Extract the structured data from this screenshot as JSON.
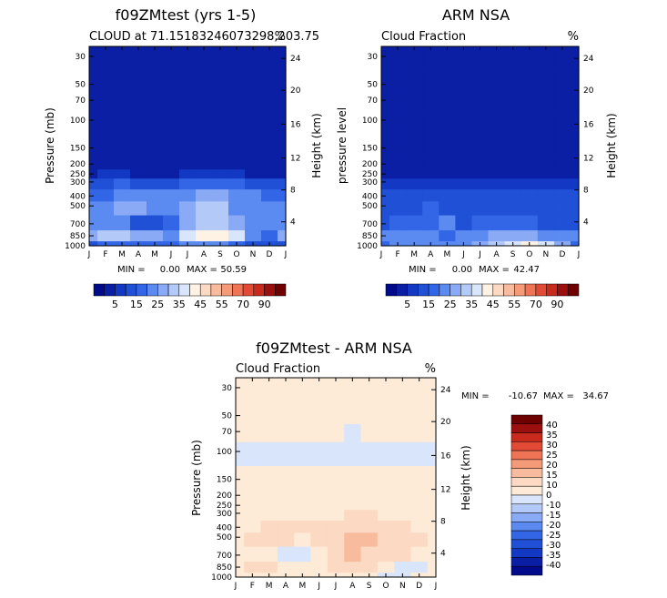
{
  "colors": {
    "scale": [
      "#000a8b",
      "#0a1fa4",
      "#1338c4",
      "#1f50d6",
      "#3366e6",
      "#5b8af0",
      "#8aaaf5",
      "#b3c9f7",
      "#d9e5fa",
      "#fdf2e4",
      "#fbd9c2",
      "#f9bb9e",
      "#f59a79",
      "#ef7355",
      "#e24a35",
      "#c92a1e",
      "#9c0f0f",
      "#6e0000"
    ],
    "diff": [
      "#000a8b",
      "#0a1fa4",
      "#1338c4",
      "#1f50d6",
      "#3366e6",
      "#5b8af0",
      "#8aaaf5",
      "#b3c9f7",
      "#d9e5fa",
      "#fdebd8",
      "#fbd9c2",
      "#f9bb9e",
      "#f59a79",
      "#ef7355",
      "#e24a35",
      "#c92a1e",
      "#9c0f0f",
      "#6e0000"
    ]
  },
  "month_ticks": [
    "J",
    "F",
    "M",
    "A",
    "M",
    "J",
    "J",
    "A",
    "S",
    "O",
    "N",
    "D",
    "J"
  ],
  "pressure_ticks": [
    "30",
    "50",
    "70",
    "100",
    "150",
    "200",
    "250",
    "300",
    "400",
    "500",
    "700",
    "850",
    "1000"
  ],
  "height_ticks": [
    "24",
    "20",
    "16",
    "12",
    "8",
    "4"
  ],
  "colorbar_labels": [
    "5",
    "15",
    "25",
    "35",
    "45",
    "55",
    "70",
    "90"
  ],
  "diff_colorbar_labels": [
    "40",
    "35",
    "30",
    "25",
    "20",
    "15",
    "10",
    "0",
    "-10",
    "-15",
    "-20",
    "-25",
    "-30",
    "-35",
    "-40"
  ],
  "panels": {
    "model": {
      "title": "f09ZMtest (yrs 1-5)",
      "subtitle": "CLOUD at 71.15183246073298,203.75",
      "unit": "%",
      "ylabel": "Pressure (mb)",
      "y2label": "Height (km)",
      "min_text": "MIN =",
      "min_value": "0.00",
      "max_text": "MAX =",
      "max_value": "50.59"
    },
    "obs": {
      "title": "ARM NSA",
      "subtitle": "Cloud Fraction",
      "unit": "%",
      "ylabel": "pressure level",
      "y2label": "Height (km)",
      "min_text": "MIN =",
      "min_value": "0.00",
      "max_text": "MAX =",
      "max_value": "42.47"
    },
    "diff": {
      "title": "f09ZMtest - ARM NSA",
      "subtitle": "Cloud Fraction",
      "unit": "%",
      "ylabel": "Pressure (mb)",
      "y2label": "Height (km)",
      "min_text": "MIN =",
      "min_value": "-10.67",
      "max_text": "MAX =",
      "max_value": "34.67"
    }
  },
  "chart_data": [
    {
      "type": "heatmap",
      "title": "f09ZMtest (yrs 1-5)",
      "subtitle": "CLOUD at 71.15183246073298,203.75",
      "xlabel": "",
      "ylabel": "Pressure (mb)",
      "y2label": "Height (km)",
      "unit": "%",
      "x": [
        "J",
        "F",
        "M",
        "A",
        "M",
        "J",
        "J",
        "A",
        "S",
        "O",
        "N",
        "D",
        "J"
      ],
      "y": [
        1000,
        850,
        700,
        500,
        400,
        300,
        250,
        200,
        150,
        100,
        70,
        50,
        30
      ],
      "values": [
        [
          14,
          16,
          16,
          18,
          18,
          16,
          20,
          22,
          20,
          16,
          12,
          10,
          14
        ],
        [
          28,
          30,
          30,
          28,
          26,
          24,
          38,
          40,
          40,
          36,
          22,
          18,
          28
        ],
        [
          22,
          24,
          20,
          14,
          10,
          16,
          26,
          34,
          30,
          26,
          24,
          22,
          22
        ],
        [
          20,
          24,
          28,
          26,
          22,
          22,
          26,
          30,
          30,
          24,
          24,
          22,
          20
        ],
        [
          16,
          18,
          22,
          22,
          20,
          20,
          22,
          26,
          26,
          22,
          20,
          18,
          16
        ],
        [
          12,
          14,
          16,
          14,
          14,
          14,
          16,
          18,
          18,
          16,
          14,
          12,
          12
        ],
        [
          4,
          6,
          6,
          4,
          4,
          4,
          6,
          8,
          8,
          6,
          4,
          4,
          4
        ],
        [
          0,
          0,
          0,
          0,
          0,
          0,
          0,
          0,
          0,
          0,
          0,
          0,
          0
        ],
        [
          0,
          0,
          0,
          0,
          0,
          0,
          0,
          0,
          0,
          0,
          0,
          0,
          0
        ],
        [
          0,
          0,
          0,
          0,
          0,
          0,
          0,
          0,
          0,
          0,
          0,
          0,
          0
        ],
        [
          0,
          0,
          0,
          0,
          0,
          0,
          0,
          0,
          0,
          0,
          0,
          0,
          0
        ],
        [
          0,
          0,
          0,
          0,
          0,
          0,
          0,
          0,
          0,
          0,
          0,
          0,
          0
        ],
        [
          0,
          0,
          0,
          0,
          0,
          0,
          0,
          0,
          0,
          0,
          0,
          0,
          0
        ]
      ],
      "min": 0.0,
      "max": 50.59,
      "levels": [
        5,
        10,
        15,
        20,
        25,
        30,
        35,
        40,
        45,
        50,
        55,
        60,
        70,
        80,
        90
      ]
    },
    {
      "type": "heatmap",
      "title": "ARM NSA",
      "subtitle": "Cloud Fraction",
      "xlabel": "",
      "ylabel": "pressure level",
      "y2label": "Height (km)",
      "unit": "%",
      "x": [
        "J",
        "F",
        "M",
        "A",
        "M",
        "J",
        "J",
        "A",
        "S",
        "O",
        "N",
        "D",
        "J"
      ],
      "y": [
        1000,
        850,
        700,
        500,
        400,
        300,
        250,
        200,
        150,
        100,
        70,
        50,
        30
      ],
      "values": [
        [
          18,
          20,
          20,
          22,
          22,
          24,
          28,
          32,
          38,
          42,
          36,
          26,
          18
        ],
        [
          20,
          24,
          22,
          20,
          18,
          20,
          24,
          26,
          28,
          28,
          24,
          22,
          20
        ],
        [
          14,
          18,
          18,
          16,
          20,
          14,
          16,
          18,
          18,
          16,
          14,
          14,
          14
        ],
        [
          12,
          14,
          14,
          16,
          14,
          12,
          14,
          14,
          14,
          14,
          12,
          12,
          12
        ],
        [
          10,
          12,
          12,
          12,
          10,
          10,
          12,
          12,
          12,
          12,
          10,
          10,
          10
        ],
        [
          6,
          8,
          8,
          6,
          6,
          8,
          8,
          8,
          8,
          8,
          6,
          6,
          6
        ],
        [
          0,
          0,
          0,
          0,
          0,
          0,
          0,
          0,
          0,
          0,
          0,
          0,
          0
        ],
        [
          0,
          0,
          0,
          0,
          0,
          0,
          0,
          0,
          0,
          0,
          0,
          0,
          0
        ],
        [
          0,
          0,
          0,
          0,
          0,
          0,
          0,
          0,
          0,
          0,
          0,
          0,
          0
        ],
        [
          0,
          0,
          0,
          0,
          0,
          0,
          0,
          0,
          0,
          0,
          0,
          0,
          0
        ],
        [
          0,
          0,
          0,
          0,
          0,
          0,
          0,
          0,
          0,
          0,
          0,
          0,
          0
        ],
        [
          0,
          0,
          0,
          0,
          0,
          0,
          0,
          0,
          0,
          0,
          0,
          0,
          0
        ],
        [
          0,
          0,
          0,
          0,
          0,
          0,
          0,
          0,
          0,
          0,
          0,
          0,
          0
        ]
      ],
      "min": 0.0,
      "max": 42.47,
      "levels": [
        5,
        10,
        15,
        20,
        25,
        30,
        35,
        40,
        45,
        50,
        55,
        60,
        70,
        80,
        90
      ]
    },
    {
      "type": "heatmap",
      "title": "f09ZMtest - ARM NSA",
      "subtitle": "Cloud Fraction",
      "xlabel": "",
      "ylabel": "Pressure (mb)",
      "y2label": "Height (km)",
      "unit": "%",
      "x": [
        "J",
        "F",
        "M",
        "A",
        "M",
        "J",
        "J",
        "A",
        "S",
        "O",
        "N",
        "D",
        "J"
      ],
      "y": [
        1000,
        850,
        700,
        500,
        400,
        300,
        250,
        200,
        150,
        100,
        70,
        50,
        30
      ],
      "values": [
        [
          2,
          4,
          2,
          2,
          4,
          2,
          4,
          4,
          2,
          -6,
          -4,
          2,
          2
        ],
        [
          6,
          10,
          12,
          8,
          8,
          4,
          14,
          14,
          12,
          8,
          -2,
          -4,
          6
        ],
        [
          8,
          6,
          2,
          -2,
          -10,
          2,
          10,
          16,
          12,
          10,
          10,
          8,
          8
        ],
        [
          8,
          10,
          14,
          10,
          8,
          10,
          12,
          16,
          16,
          10,
          12,
          10,
          8
        ],
        [
          6,
          6,
          10,
          10,
          10,
          10,
          10,
          14,
          14,
          10,
          10,
          8,
          6
        ],
        [
          6,
          6,
          8,
          8,
          8,
          6,
          8,
          10,
          10,
          8,
          8,
          6,
          6
        ],
        [
          4,
          6,
          6,
          4,
          4,
          4,
          6,
          8,
          8,
          6,
          4,
          4,
          4
        ],
        [
          2,
          2,
          2,
          2,
          2,
          2,
          2,
          2,
          2,
          2,
          2,
          2,
          2
        ],
        [
          2,
          2,
          2,
          2,
          2,
          2,
          2,
          2,
          2,
          2,
          2,
          2,
          2
        ],
        [
          -2,
          -2,
          -2,
          -2,
          -2,
          -2,
          -2,
          -2,
          -2,
          -2,
          -2,
          -2,
          -2
        ],
        [
          0,
          0,
          0,
          0,
          0,
          0,
          2,
          -2,
          0,
          0,
          0,
          0,
          0
        ],
        [
          0,
          0,
          2,
          2,
          2,
          2,
          2,
          2,
          2,
          2,
          2,
          0,
          0
        ],
        [
          2,
          2,
          2,
          2,
          2,
          2,
          2,
          2,
          2,
          2,
          2,
          2,
          2
        ]
      ],
      "min": -10.67,
      "max": 34.67,
      "levels": [
        -40,
        -35,
        -30,
        -25,
        -20,
        -15,
        -10,
        0,
        10,
        15,
        20,
        25,
        30,
        35,
        40
      ]
    }
  ]
}
